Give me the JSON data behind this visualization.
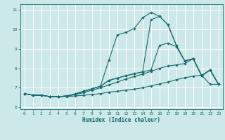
{
  "xlabel": "Humidex (Indice chaleur)",
  "bg_color": "#cce8e8",
  "grid_color": "#ffffff",
  "line_color": "#1a6b6b",
  "xlim": [
    -0.5,
    23.5
  ],
  "ylim": [
    5.9,
    11.3
  ],
  "yticks": [
    6,
    7,
    8,
    9,
    10,
    11
  ],
  "xticks": [
    0,
    1,
    2,
    3,
    4,
    5,
    6,
    7,
    8,
    9,
    10,
    11,
    12,
    13,
    14,
    15,
    16,
    17,
    18,
    19,
    20,
    21,
    22,
    23
  ],
  "lines": [
    {
      "x": [
        0,
        1,
        2,
        3,
        4,
        5,
        6,
        7,
        8,
        9,
        10,
        11,
        12,
        13,
        14,
        15,
        16,
        17,
        18,
        19,
        20,
        21,
        22,
        23
      ],
      "y": [
        6.7,
        6.62,
        6.62,
        6.55,
        6.55,
        6.55,
        6.58,
        6.62,
        6.66,
        6.7,
        6.78,
        6.82,
        6.88,
        6.93,
        7.0,
        7.1,
        7.2,
        7.3,
        7.42,
        7.52,
        7.6,
        7.65,
        7.18,
        7.18
      ]
    },
    {
      "x": [
        0,
        1,
        2,
        3,
        4,
        5,
        6,
        7,
        8,
        9,
        10,
        11,
        12,
        13,
        14,
        15,
        16,
        17,
        18,
        19,
        20,
        21,
        22,
        23
      ],
      "y": [
        6.7,
        6.62,
        6.62,
        6.55,
        6.55,
        6.58,
        6.65,
        6.75,
        6.88,
        7.0,
        7.15,
        7.3,
        7.45,
        7.58,
        7.7,
        7.85,
        8.0,
        8.12,
        8.18,
        8.25,
        8.5,
        7.62,
        7.92,
        7.18
      ]
    },
    {
      "x": [
        0,
        1,
        2,
        3,
        4,
        5,
        6,
        7,
        8,
        9,
        10,
        11,
        12,
        13,
        14,
        15,
        16,
        17,
        18,
        19,
        20,
        21,
        22,
        23
      ],
      "y": [
        6.7,
        6.62,
        6.62,
        6.55,
        6.55,
        6.58,
        6.68,
        6.82,
        6.95,
        7.08,
        7.38,
        7.5,
        7.62,
        7.72,
        7.82,
        7.92,
        9.18,
        9.3,
        9.12,
        8.38,
        8.5,
        7.62,
        7.92,
        7.18
      ]
    },
    {
      "x": [
        0,
        1,
        2,
        3,
        4,
        5,
        6,
        7,
        8,
        9,
        10,
        11,
        12,
        13,
        14,
        15,
        16,
        17,
        18,
        19,
        20,
        21,
        22,
        23
      ],
      "y": [
        6.7,
        6.62,
        6.62,
        6.55,
        6.55,
        6.58,
        6.68,
        6.82,
        6.95,
        7.08,
        7.38,
        7.5,
        7.62,
        7.72,
        7.82,
        10.5,
        10.68,
        10.25,
        9.18,
        8.38,
        8.5,
        7.62,
        7.92,
        7.18
      ]
    },
    {
      "x": [
        0,
        1,
        2,
        3,
        4,
        5,
        6,
        7,
        8,
        9,
        10,
        11,
        12,
        13,
        14,
        15,
        16,
        17,
        18,
        19,
        20,
        21,
        22,
        23
      ],
      "y": [
        6.7,
        6.62,
        6.62,
        6.55,
        6.55,
        6.58,
        6.68,
        6.82,
        6.95,
        7.08,
        8.42,
        9.72,
        9.85,
        10.05,
        10.6,
        10.88,
        10.68,
        10.25,
        9.18,
        8.38,
        8.5,
        7.62,
        7.92,
        7.18
      ]
    }
  ]
}
